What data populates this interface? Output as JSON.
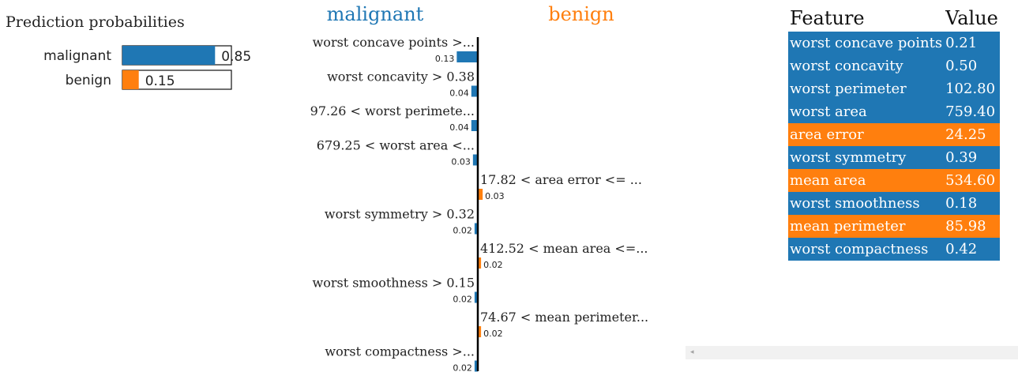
{
  "colors": {
    "malignant": "#1f77b4",
    "benign": "#ff7f0e"
  },
  "proba": {
    "title": "Prediction probabilities",
    "items": [
      {
        "label": "malignant",
        "value": 0.85,
        "value_text": "0.85",
        "color": "#1f77b4"
      },
      {
        "label": "benign",
        "value": 0.15,
        "value_text": "0.15",
        "color": "#ff7f0e"
      }
    ]
  },
  "chart_data": {
    "type": "bar",
    "class_labels": {
      "negative": "malignant",
      "positive": "benign"
    },
    "features": [
      {
        "label": "worst concave points >...",
        "value": 0.13,
        "value_text": "0.13",
        "class": "malignant"
      },
      {
        "label": "worst concavity > 0.38",
        "value": 0.04,
        "value_text": "0.04",
        "class": "malignant"
      },
      {
        "label": "97.26 < worst perimete...",
        "value": 0.04,
        "value_text": "0.04",
        "class": "malignant"
      },
      {
        "label": "679.25 < worst area <...",
        "value": 0.03,
        "value_text": "0.03",
        "class": "malignant"
      },
      {
        "label": "17.82 < area error <= ...",
        "value": 0.03,
        "value_text": "0.03",
        "class": "benign"
      },
      {
        "label": "worst symmetry > 0.32",
        "value": 0.02,
        "value_text": "0.02",
        "class": "malignant"
      },
      {
        "label": "412.52 < mean area <=...",
        "value": 0.02,
        "value_text": "0.02",
        "class": "benign"
      },
      {
        "label": "worst smoothness > 0.15",
        "value": 0.02,
        "value_text": "0.02",
        "class": "malignant"
      },
      {
        "label": "74.67 < mean perimeter...",
        "value": 0.02,
        "value_text": "0.02",
        "class": "benign"
      },
      {
        "label": "worst compactness >...",
        "value": 0.02,
        "value_text": "0.02",
        "class": "malignant"
      }
    ]
  },
  "table": {
    "headers": {
      "feature": "Feature",
      "value": "Value"
    },
    "rows": [
      {
        "feature": "worst concave points",
        "value": "0.21",
        "class": "malignant"
      },
      {
        "feature": "worst concavity",
        "value": "0.50",
        "class": "malignant"
      },
      {
        "feature": "worst perimeter",
        "value": "102.80",
        "class": "malignant"
      },
      {
        "feature": "worst area",
        "value": "759.40",
        "class": "malignant"
      },
      {
        "feature": "area error",
        "value": "24.25",
        "class": "benign"
      },
      {
        "feature": "worst symmetry",
        "value": "0.39",
        "class": "malignant"
      },
      {
        "feature": "mean area",
        "value": "534.60",
        "class": "benign"
      },
      {
        "feature": "worst smoothness",
        "value": "0.18",
        "class": "malignant"
      },
      {
        "feature": "mean perimeter",
        "value": "85.98",
        "class": "benign"
      },
      {
        "feature": "worst compactness",
        "value": "0.42",
        "class": "malignant"
      }
    ]
  },
  "scrollbar": {
    "left_arrow": "◂"
  }
}
